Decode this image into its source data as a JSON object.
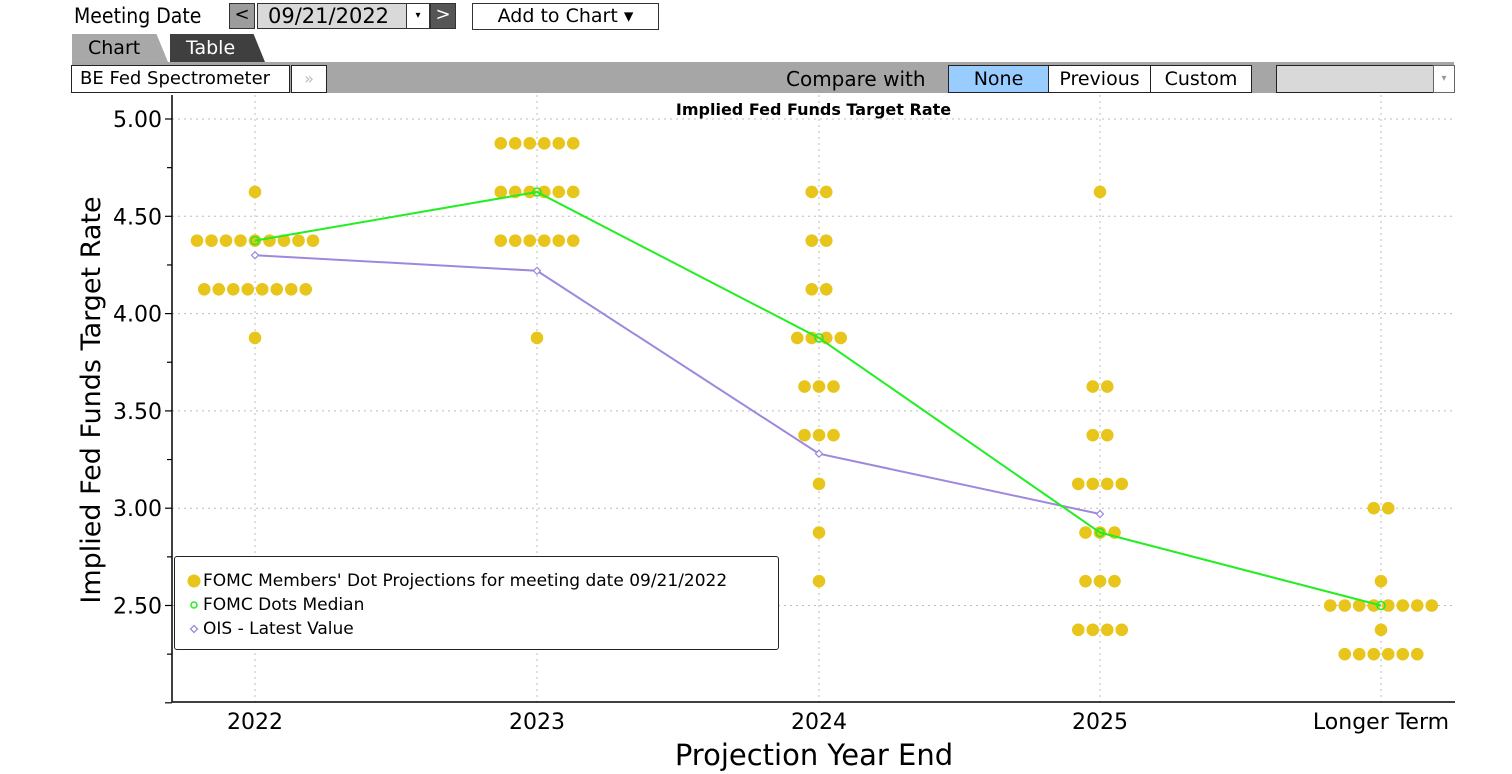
{
  "header": {
    "meeting_date_label": "Meeting Date",
    "prev_label": "<",
    "next_label": ">",
    "meeting_date_value": "09/21/2022",
    "date_dropdown_icon": "▾",
    "add_to_chart_label": "Add to Chart ▾"
  },
  "tabs": [
    {
      "label": "Chart",
      "active": true
    },
    {
      "label": "Table",
      "active": false
    }
  ],
  "toolbar": {
    "view_name": "BE Fed Spectrometer",
    "more_icon": "»",
    "compare_label": "Compare with",
    "compare_options": [
      "None",
      "Previous",
      "Custom"
    ],
    "compare_selected": "None",
    "custom_select_value": "",
    "custom_select_icon": "▾"
  },
  "colors": {
    "dots": "#e8c51b",
    "median": "#22ee22",
    "ois": "#9e88dd",
    "compare_selected": "#99ccff",
    "toolbar_bg": "#a6a6a6"
  },
  "chart_data": {
    "type": "scatter",
    "title": "Implied Fed Funds Target Rate",
    "xlabel": "Projection Year End",
    "ylabel": "Implied Fed Funds Target Rate",
    "categories": [
      "2022",
      "2023",
      "2024",
      "2025",
      "Longer Term"
    ],
    "ylim": [
      2.0,
      5.1
    ],
    "yticks": [
      "5.00",
      "4.50",
      "4.00",
      "3.50",
      "3.00",
      "2.50"
    ],
    "grid": true,
    "legend_position": "lower-left",
    "series": [
      {
        "name": "FOMC Members' Dot Projections for meeting date 09/21/2022",
        "kind": "dots",
        "points": {
          "2022": [
            [
              4.625,
              1
            ],
            [
              4.375,
              9
            ],
            [
              4.125,
              8
            ],
            [
              3.875,
              1
            ]
          ],
          "2023": [
            [
              4.875,
              6
            ],
            [
              4.625,
              6
            ],
            [
              4.375,
              6
            ],
            [
              3.875,
              1
            ]
          ],
          "2024": [
            [
              4.625,
              2
            ],
            [
              4.375,
              2
            ],
            [
              4.125,
              2
            ],
            [
              3.875,
              4
            ],
            [
              3.625,
              3
            ],
            [
              3.375,
              3
            ],
            [
              3.125,
              1
            ],
            [
              2.875,
              1
            ],
            [
              2.625,
              1
            ]
          ],
          "2025": [
            [
              4.625,
              1
            ],
            [
              3.625,
              2
            ],
            [
              3.375,
              2
            ],
            [
              3.125,
              4
            ],
            [
              2.875,
              3
            ],
            [
              2.625,
              3
            ],
            [
              2.375,
              4
            ]
          ],
          "Longer Term": [
            [
              3.0,
              2
            ],
            [
              2.625,
              1
            ],
            [
              2.5,
              8
            ],
            [
              2.375,
              1
            ],
            [
              2.25,
              6
            ]
          ]
        }
      },
      {
        "name": "FOMC Dots Median",
        "kind": "line",
        "values": [
          4.375,
          4.625,
          3.875,
          2.875,
          2.5
        ]
      },
      {
        "name": "OIS - Latest Value",
        "kind": "line",
        "values": [
          4.3,
          4.22,
          3.28,
          2.97,
          null
        ]
      }
    ]
  }
}
